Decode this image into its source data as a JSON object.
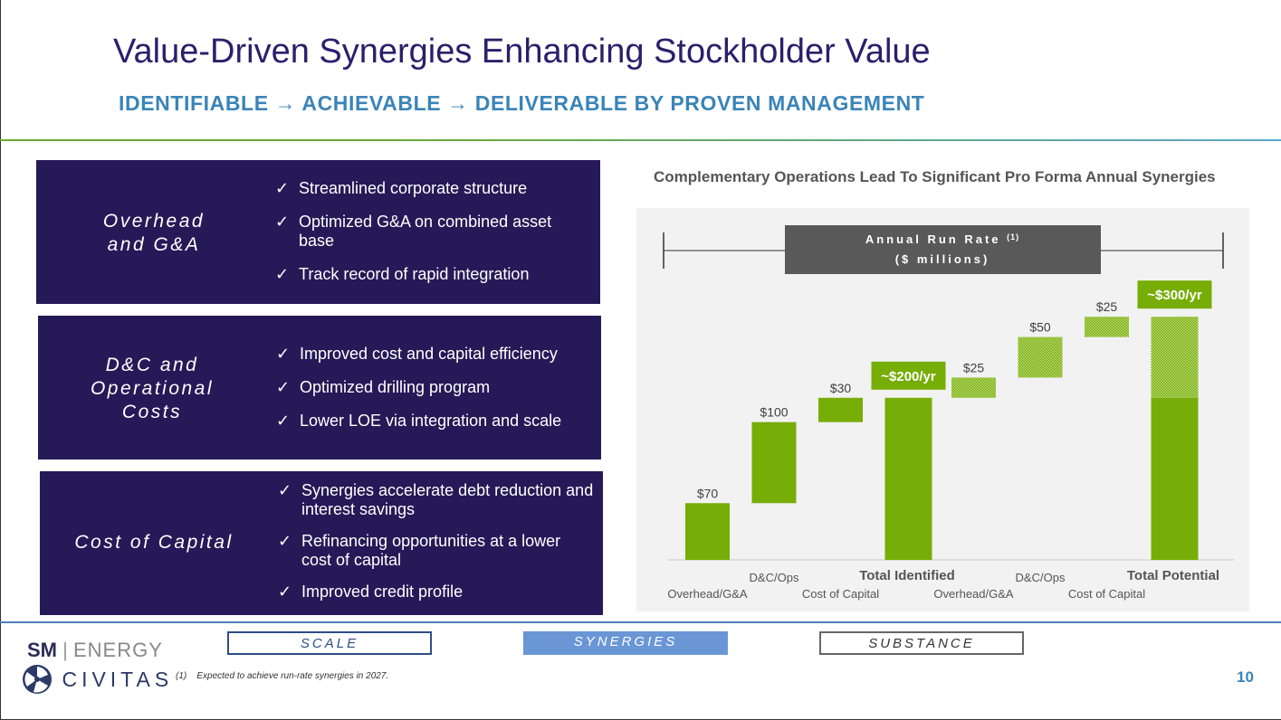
{
  "title": "Value-Driven Synergies Enhancing Stockholder Value",
  "subtitle": "IDENTIFIABLE → ACHIEVABLE → DELIVERABLE BY PROVEN MANAGEMENT",
  "panels": [
    {
      "title": "Overhead and G&A",
      "items": [
        "Streamlined corporate structure",
        "Optimized G&A on combined asset base",
        "Track record of rapid integration"
      ]
    },
    {
      "title": "D&C and Operational Costs",
      "items": [
        "Improved cost and capital efficiency",
        "Optimized drilling program",
        "Lower LOE via integration and scale"
      ]
    },
    {
      "title": "Cost of Capital",
      "items": [
        "Synergies accelerate debt reduction and interest savings",
        "Refinancing opportunities at a lower cost of capital",
        "Improved credit profile"
      ]
    }
  ],
  "check_mark": "✓",
  "chart_data": {
    "type": "waterfall",
    "title": "Complementary Operations Lead To Significant Pro Forma Annual Synergies",
    "banner_title": "Annual Run Rate",
    "banner_superscript": "(1)",
    "banner_units": "($ millions)",
    "ylim": [
      0,
      310
    ],
    "steps": [
      {
        "label": "Overhead/G&A",
        "value": 70,
        "value_label": "$70",
        "kind": "identified",
        "label_row": "low"
      },
      {
        "label": "D&C/Ops",
        "value": 100,
        "value_label": "$100",
        "kind": "identified",
        "label_row": "high"
      },
      {
        "label": "Cost of Capital",
        "value": 30,
        "value_label": "$30",
        "kind": "identified",
        "label_row": "low"
      },
      {
        "label": "Total Identified",
        "total": 200,
        "value_label": "~$200/yr",
        "kind": "total",
        "label_row": "high"
      },
      {
        "label": "Overhead/G&A",
        "value": 25,
        "value_label": "$25",
        "kind": "potential",
        "label_row": "low"
      },
      {
        "label": "D&C/Ops",
        "value": 50,
        "value_label": "$50",
        "kind": "potential",
        "label_row": "high"
      },
      {
        "label": "Cost of Capital",
        "value": 25,
        "value_label": "$25",
        "kind": "potential",
        "label_row": "low"
      },
      {
        "label": "Total Potential",
        "total": 300,
        "identified_part": 200,
        "value_label": "~$300/yr",
        "kind": "total",
        "label_row": "high"
      }
    ]
  },
  "nav": {
    "scale": "SCALE",
    "synergies": "SYNERGIES",
    "substance": "SUBSTANCE"
  },
  "logo": {
    "sm": "SM",
    "energy": "ENERGY",
    "civitas": "CIVITAS"
  },
  "footnote": {
    "marker": "(1)",
    "text": "Expected to achieve run-rate synergies in 2027."
  },
  "page_number": "10",
  "colors": {
    "navy": "#251a57",
    "green": "#76ad06",
    "title": "#2b1f6b",
    "accent_blue": "#3a84b8",
    "banner": "#595959"
  }
}
